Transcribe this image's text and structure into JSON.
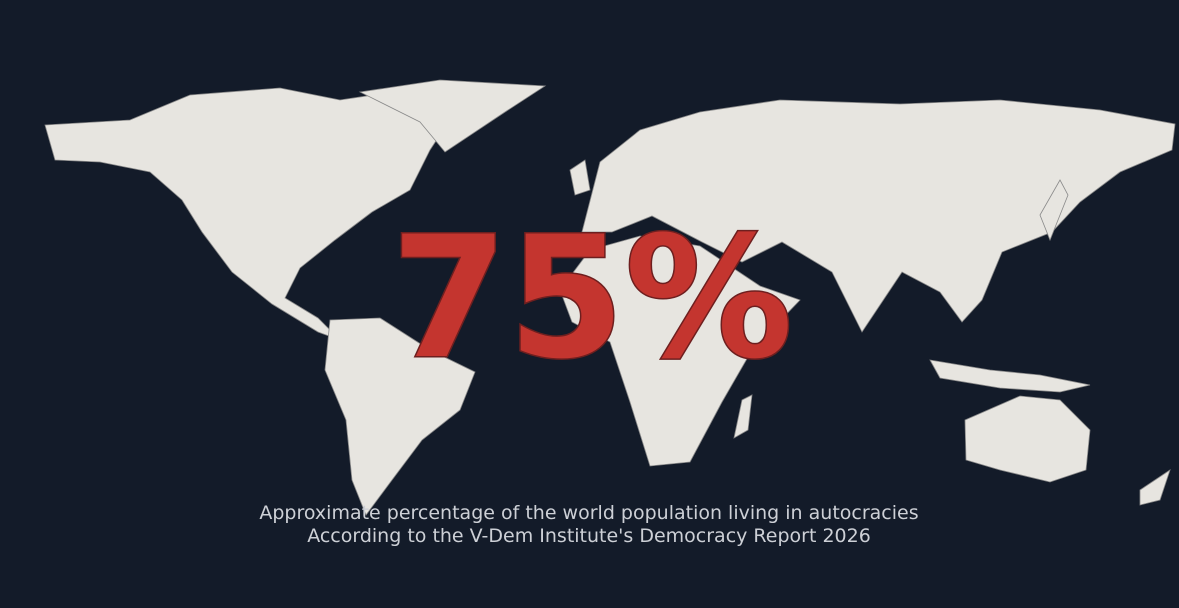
{
  "headline": "75%",
  "caption": [
    "Approximate percentage of the world population living in autocracies",
    "According to the V-Dem Institute's Democracy Report 2026"
  ]
}
